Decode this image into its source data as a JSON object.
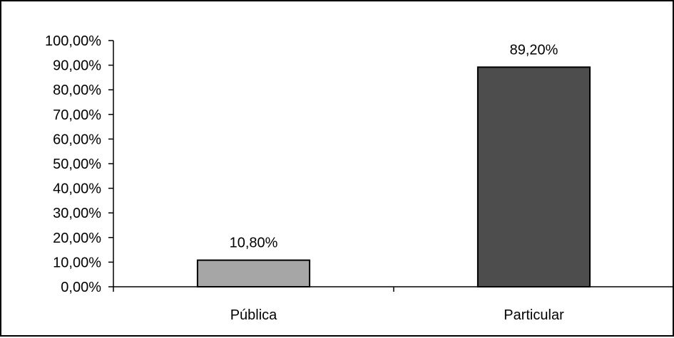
{
  "chart_data": {
    "type": "bar",
    "categories": [
      "Pública",
      "Particular"
    ],
    "values": [
      10.8,
      89.2
    ],
    "value_labels": [
      "10,80%",
      "89,20%"
    ],
    "bar_colors": [
      "#a6a6a6",
      "#4d4d4d"
    ],
    "ylim": [
      0,
      100
    ],
    "y_ticks": [
      0,
      10,
      20,
      30,
      40,
      50,
      60,
      70,
      80,
      90,
      100
    ],
    "y_tick_labels": [
      "0,00%",
      "10,00%",
      "20,00%",
      "30,00%",
      "40,00%",
      "50,00%",
      "60,00%",
      "70,00%",
      "80,00%",
      "90,00%",
      "100,00%"
    ],
    "title": "",
    "xlabel": "",
    "ylabel": "",
    "grid": false,
    "legend": "none"
  }
}
